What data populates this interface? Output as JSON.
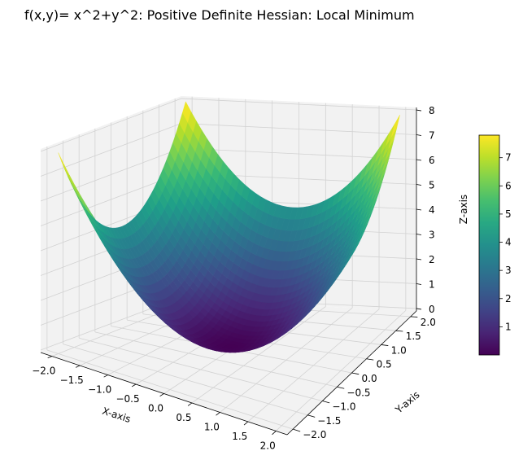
{
  "chart_data": {
    "type": "surface",
    "title": "f(x,y)= x^2+y^2: Positive Definite Hessian: Local Minimum",
    "function": "x^2+y^2",
    "xlabel": "X-axis",
    "ylabel": "Y-axis",
    "zlabel": "Z-axis",
    "xlim": [
      -2.2,
      2.2
    ],
    "ylim": [
      -2.2,
      2.2
    ],
    "zlim": [
      -0.1,
      8.1
    ],
    "x_domain": [
      -2,
      2
    ],
    "y_domain": [
      -2,
      2
    ],
    "grid_n": 40,
    "x_ticks": [
      -2.0,
      -1.5,
      -1.0,
      -0.5,
      0.0,
      0.5,
      1.0,
      1.5,
      2.0
    ],
    "y_ticks": [
      -2.0,
      -1.5,
      -1.0,
      -0.5,
      0.0,
      0.5,
      1.0,
      1.5,
      2.0
    ],
    "z_ticks": [
      0,
      1,
      2,
      3,
      4,
      5,
      6,
      7,
      8
    ],
    "x_tick_labels": [
      "−2.0",
      "−1.5",
      "−1.0",
      "−0.5",
      "0.0",
      "0.5",
      "1.0",
      "1.5",
      "2.0"
    ],
    "y_tick_labels": [
      "−2.0",
      "−1.5",
      "−1.0",
      "−0.5",
      "0.0",
      "0.5",
      "1.0",
      "1.5",
      "2.0"
    ],
    "z_tick_labels": [
      "0",
      "1",
      "2",
      "3",
      "4",
      "5",
      "6",
      "7",
      "8"
    ],
    "colormap": "viridis",
    "colorbar": {
      "range": [
        0,
        7.8
      ],
      "ticks": [
        1,
        2,
        3,
        4,
        5,
        6,
        7
      ],
      "tick_labels": [
        "1",
        "2",
        "3",
        "4",
        "5",
        "6",
        "7"
      ]
    },
    "grid": true,
    "pane_color": "#f2f2f2",
    "grid_color": "#d2d2d2"
  }
}
